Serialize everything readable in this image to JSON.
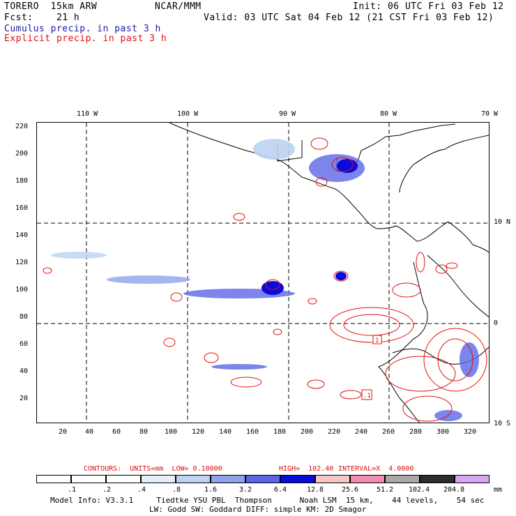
{
  "header": {
    "model": "TORERO  15km ARW",
    "org": "NCAR/MMM",
    "init": "Init: 06 UTC Fri 03 Feb 12",
    "fcst": "Fcst:    21 h",
    "valid": "Valid: 03 UTC Sat 04 Feb 12 (21 CST Fri 03 Feb 12)",
    "legend_cumulus": "Cumulus precip. in past 3 h",
    "legend_explicit": "Explicit precip. in past 3 h"
  },
  "colors": {
    "cumulus_text": "#1a1aa8",
    "explicit_text": "#e01010",
    "explicit_contour": "#e01010",
    "dash_grid": "#000000"
  },
  "top_lon_labels": [
    "110 W",
    "100 W",
    "90 W",
    "80 W",
    "70 W"
  ],
  "right_lat_labels": [
    "10 N",
    "0",
    "10 S"
  ],
  "x_ticks": [
    "20",
    "40",
    "60",
    "80",
    "100",
    "120",
    "140",
    "160",
    "180",
    "200",
    "220",
    "240",
    "260",
    "280",
    "300",
    "320"
  ],
  "y_ticks": [
    "20",
    "40",
    "60",
    "80",
    "100",
    "120",
    "140",
    "160",
    "180",
    "200",
    "220"
  ],
  "box_labels": [
    "1",
    ".1"
  ],
  "contours_line": {
    "title": "CONTOURS:  UNITS=mm  LOW= 0.10000",
    "high": "HIGH=  102.40",
    "interval": "INTERVAL=X  4.0000"
  },
  "colorbar": {
    "levels": [
      ".1",
      ".2",
      ".4",
      ".8",
      "1.6",
      "3.2",
      "6.4",
      "12.8",
      "25.6",
      "51.2",
      "102.4",
      "204.8"
    ],
    "unit": "mm",
    "colors": [
      "#ffffff",
      "#ffffff",
      "#ffffff",
      "#e6f0fb",
      "#bcd3f2",
      "#8fa3ea",
      "#5a66e6",
      "#0a0adc",
      "#f6c6c6",
      "#f38ab4",
      "#a8a8a8",
      "#2d2d2d",
      "#d6a6f2"
    ]
  },
  "footer": {
    "line1": "Model Info: V3.3.1     Tiedtke YSU PBL  Thompson      Noah LSM  15 km,    44 levels,    54 sec",
    "line2": "LW: Godd SW: Goddard DIFF: simple KM: 2D Smagor"
  },
  "map_data": {
    "grid_x_max": 330,
    "grid_y_max": 220,
    "meridians_x": [
      39,
      113,
      186,
      259
    ],
    "parallels_y": [
      150,
      76
    ]
  }
}
